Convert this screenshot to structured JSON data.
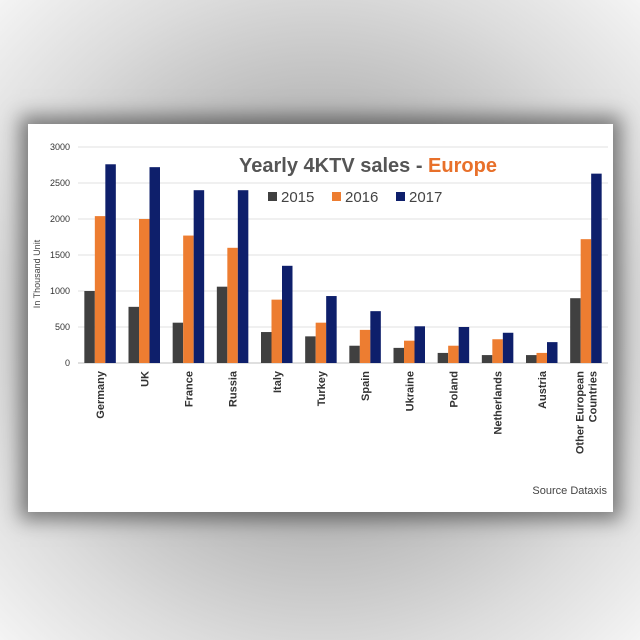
{
  "chart_data": {
    "type": "bar",
    "title": "Yearly 4KTV sales - ",
    "title_highlight": "Europe",
    "ylabel": "In Thousand Unit",
    "xlabel": "",
    "source": "Source Dataxis",
    "ylim": [
      0,
      3000
    ],
    "yticks": [
      0,
      500,
      1000,
      1500,
      2000,
      2500,
      3000
    ],
    "grid": true,
    "legend_position": "top",
    "categories": [
      "Germany",
      "UK",
      "France",
      "Russia",
      "Italy",
      "Turkey",
      "Spain",
      "Ukraine",
      "Poland",
      "Netherlands",
      "Austria",
      [
        "Other European",
        "Countries"
      ]
    ],
    "series": [
      {
        "name": "2015",
        "color": "#404040",
        "values": [
          1000,
          780,
          560,
          1060,
          430,
          370,
          240,
          210,
          140,
          110,
          110,
          900
        ]
      },
      {
        "name": "2016",
        "color": "#ED7D31",
        "values": [
          2040,
          2000,
          1770,
          1600,
          880,
          560,
          460,
          310,
          240,
          330,
          140,
          1720
        ]
      },
      {
        "name": "2017",
        "color": "#0E1F6B",
        "values": [
          2760,
          2720,
          2400,
          2400,
          1350,
          930,
          720,
          510,
          500,
          420,
          290,
          2630
        ]
      }
    ]
  }
}
